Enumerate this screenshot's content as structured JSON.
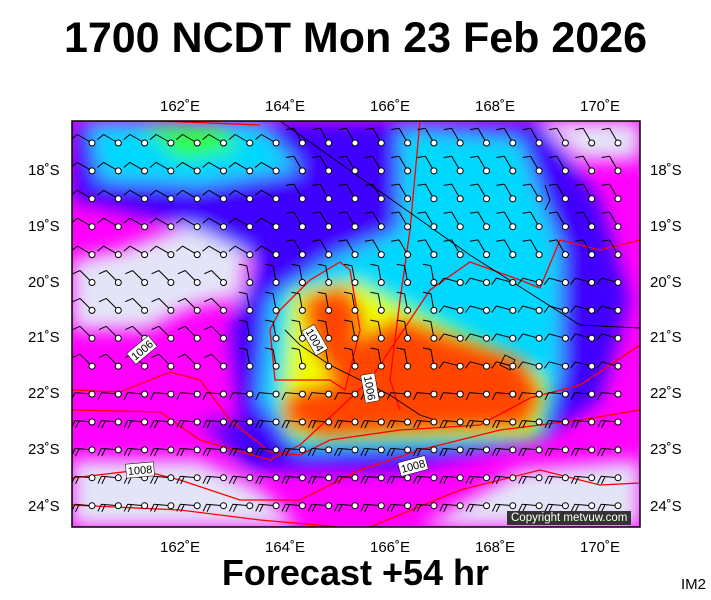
{
  "title": "1700 NCDT Mon 23 Feb 2026",
  "footer": "Forecast +54 hr",
  "image_code": "IM2",
  "copyright": "Copyright metvuw.com",
  "lon_labels": [
    "162˚E",
    "164˚E",
    "166˚E",
    "168˚E",
    "170˚E"
  ],
  "lat_labels": [
    "18˚S",
    "19˚S",
    "20˚S",
    "21˚S",
    "22˚S",
    "23˚S",
    "24˚S"
  ],
  "isobar_labels": [
    "1004",
    "1006",
    "1006",
    "1008",
    "1008"
  ],
  "colors": {
    "background": "#ff00ff",
    "low": "#e4e4f8",
    "blue": "#4000ff",
    "cyan": "#00e0ff",
    "green": "#20ff40",
    "yellow": "#f0ff00",
    "max": "#ff4400",
    "isobar": "#ff0000"
  }
}
